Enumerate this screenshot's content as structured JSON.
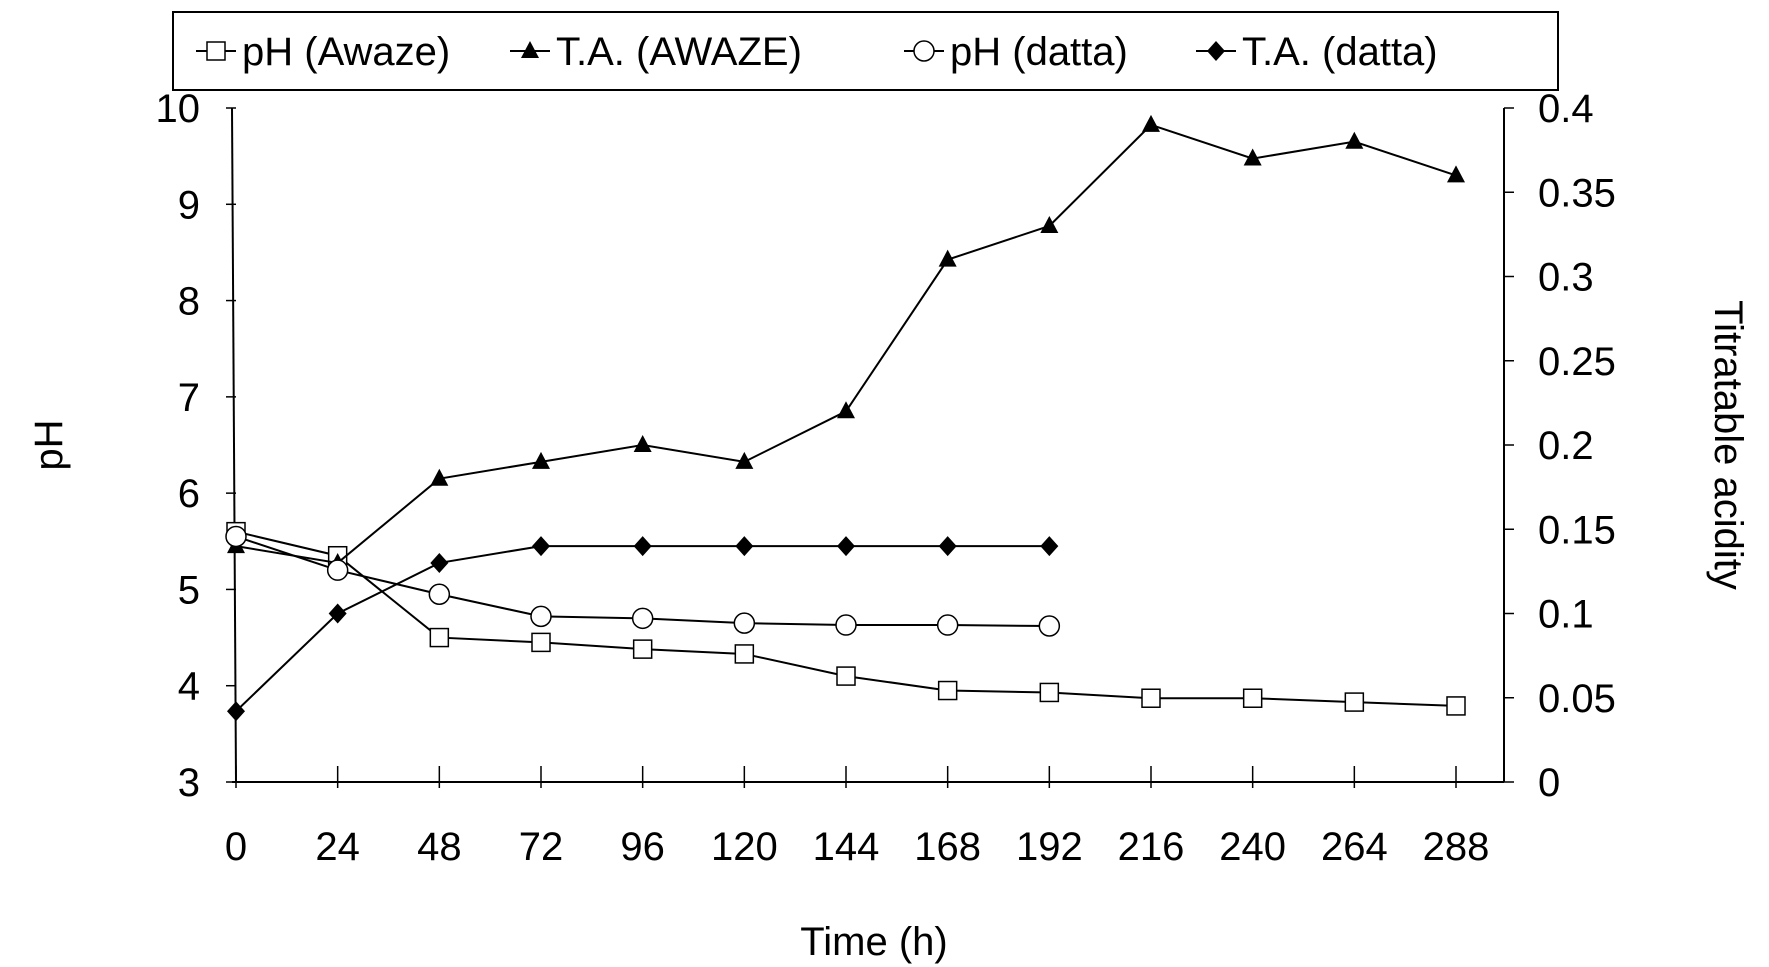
{
  "chart_data": {
    "type": "line",
    "xlabel": "Time (h)",
    "ylabel": "pH",
    "y2label": "Titratable acidity",
    "x_categories": [
      0,
      24,
      48,
      72,
      96,
      120,
      144,
      168,
      192,
      216,
      240,
      264,
      288
    ],
    "ylim": [
      3,
      10
    ],
    "y_ticks": [
      3,
      4,
      5,
      6,
      7,
      8,
      9,
      10
    ],
    "y2lim": [
      0,
      0.4
    ],
    "y2_ticks": [
      "0",
      "0.05",
      "0.1",
      "0.15",
      "0.2",
      "0.25",
      "0.3",
      "0.35",
      "0.4"
    ],
    "grid": false,
    "legend_position": "top",
    "series": [
      {
        "name": "pH (Awaze)",
        "axis": "left",
        "marker": "square-open",
        "x": [
          0,
          24,
          48,
          72,
          96,
          120,
          144,
          168,
          192,
          216,
          240,
          264,
          288
        ],
        "values": [
          5.6,
          5.35,
          4.5,
          4.45,
          4.38,
          4.33,
          4.1,
          3.95,
          3.93,
          3.87,
          3.87,
          3.83,
          3.79
        ]
      },
      {
        "name": "T.A. (AWAZE)",
        "axis": "right",
        "marker": "triangle-filled",
        "x": [
          0,
          24,
          48,
          72,
          96,
          120,
          144,
          168,
          192,
          216,
          240,
          264,
          288
        ],
        "values": [
          0.14,
          0.13,
          0.18,
          0.19,
          0.2,
          0.19,
          0.22,
          0.31,
          0.33,
          0.39,
          0.37,
          0.38,
          0.36
        ]
      },
      {
        "name": "pH (datta)",
        "axis": "left",
        "marker": "circle-open",
        "x": [
          0,
          24,
          48,
          72,
          96,
          120,
          144,
          168,
          192
        ],
        "values": [
          5.55,
          5.2,
          4.95,
          4.72,
          4.7,
          4.65,
          4.63,
          4.63,
          4.62
        ]
      },
      {
        "name": "T.A. (datta)",
        "axis": "right",
        "marker": "diamond-filled",
        "x": [
          0,
          24,
          48,
          72,
          96,
          120,
          144,
          168,
          192
        ],
        "values": [
          0.042,
          0.1,
          0.13,
          0.14,
          0.14,
          0.14,
          0.14,
          0.14,
          0.14
        ]
      }
    ]
  }
}
